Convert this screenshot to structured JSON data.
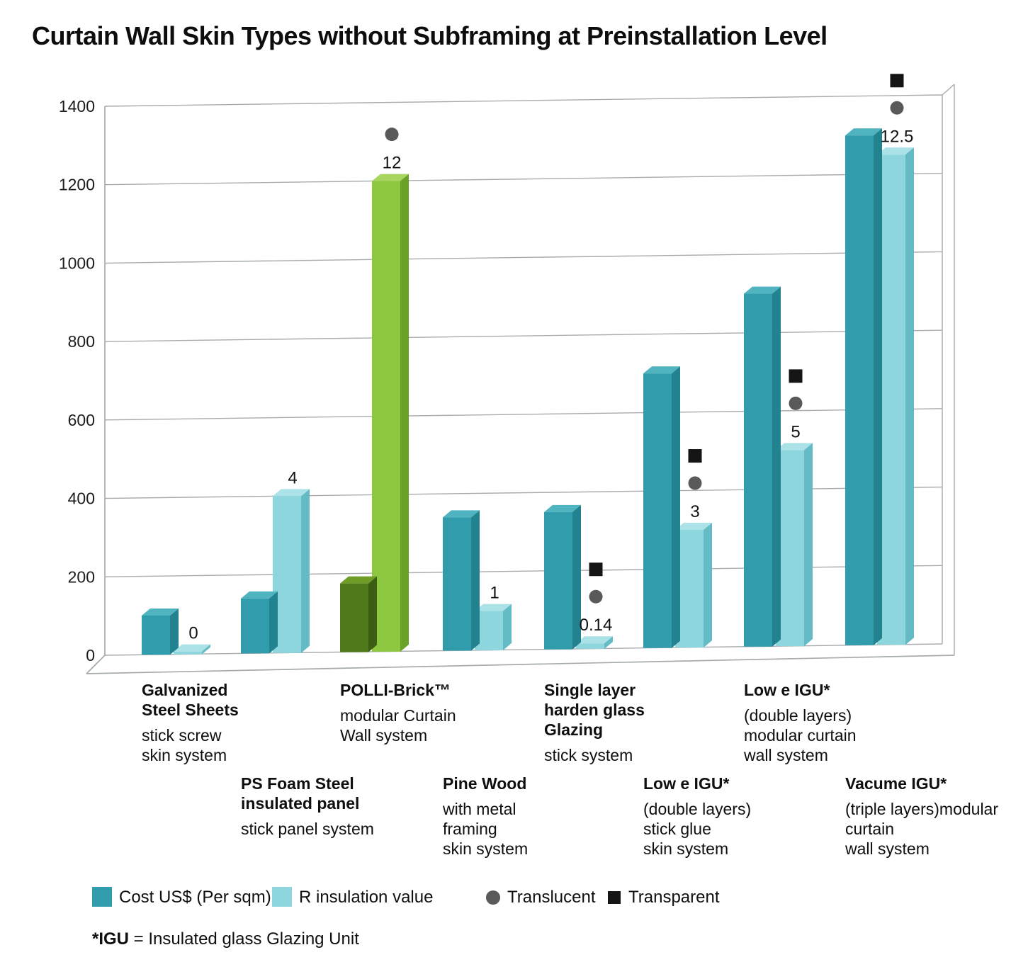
{
  "title": "Curtain Wall Skin Types without Subframing at Preinstallation Level",
  "legend": {
    "cost": "Cost US$ (Per sqm)",
    "r": "R insulation value",
    "translucent": "Translucent",
    "transparent": "Transparent"
  },
  "footnote": {
    "bold": "*IGU",
    "rest": " = Insulated glass Glazing Unit"
  },
  "colors": {
    "cost_front": "#319cab",
    "cost_side": "#23828f",
    "cost_top": "#4fb4c0",
    "r_front": "#8ed6dd",
    "r_side": "#64bac5",
    "r_top": "#abe2e7",
    "polli_cost_front": "#4e7a1a",
    "polli_cost_side": "#3b5e12",
    "polli_cost_top": "#6f9d27",
    "polli_r_front": "#8dc63f",
    "polli_r_side": "#6aa228",
    "polli_r_top": "#a7d65f",
    "translucent_marker": "#595959",
    "transparent_marker": "#151515",
    "grid": "#a6abae"
  },
  "chart_data": {
    "type": "bar",
    "title": "Curtain Wall Skin Types without Subframing at Preinstallation Level",
    "ylim": [
      0,
      1400
    ],
    "y_ticks": [
      0,
      200,
      400,
      600,
      800,
      1000,
      1200,
      1400
    ],
    "scale_note": "R insulation value bars are plotted at value x 100 on the shared axis",
    "legend_position": "bottom",
    "grid": true,
    "series": [
      {
        "name": "Cost US$ (Per sqm)",
        "values": [
          100,
          140,
          175,
          340,
          350,
          700,
          900,
          1300
        ]
      },
      {
        "name": "R insulation value",
        "values": [
          0,
          4,
          12,
          1,
          0.14,
          3,
          5,
          12.5
        ]
      }
    ],
    "groups": [
      {
        "bold_lines": [
          "Galvanized",
          "Steel Sheets"
        ],
        "plain_lines": [
          "stick screw",
          "skin system"
        ],
        "translucent": false,
        "transparent": false,
        "green": false,
        "label_row": 1
      },
      {
        "bold_lines": [
          "PS Foam Steel",
          "insulated panel"
        ],
        "plain_lines": [
          "stick panel system"
        ],
        "translucent": false,
        "transparent": false,
        "green": false,
        "label_row": 2
      },
      {
        "bold_lines": [
          "POLLI-Brick™"
        ],
        "plain_lines": [
          "modular Curtain",
          "Wall system"
        ],
        "translucent": true,
        "transparent": false,
        "green": true,
        "label_row": 1
      },
      {
        "bold_lines": [
          "Pine Wood"
        ],
        "plain_lines": [
          "with metal",
          "framing",
          "skin system"
        ],
        "translucent": false,
        "transparent": false,
        "green": false,
        "label_row": 2
      },
      {
        "bold_lines": [
          "Single layer",
          "harden glass",
          "Glazing"
        ],
        "plain_lines": [
          "stick system"
        ],
        "translucent": true,
        "transparent": true,
        "green": false,
        "label_row": 1
      },
      {
        "bold_lines": [
          "Low e IGU*"
        ],
        "plain_lines": [
          "(double layers)",
          "stick glue",
          "skin system"
        ],
        "translucent": true,
        "transparent": true,
        "green": false,
        "label_row": 2
      },
      {
        "bold_lines": [
          "Low e IGU*"
        ],
        "plain_lines": [
          "(double layers)",
          "modular curtain",
          "wall system"
        ],
        "translucent": true,
        "transparent": true,
        "green": false,
        "label_row": 1
      },
      {
        "bold_lines": [
          "Vacume IGU*"
        ],
        "plain_lines": [
          "(triple layers)modular",
          "curtain",
          "wall system"
        ],
        "translucent": true,
        "transparent": true,
        "green": false,
        "label_row": 2
      }
    ]
  }
}
